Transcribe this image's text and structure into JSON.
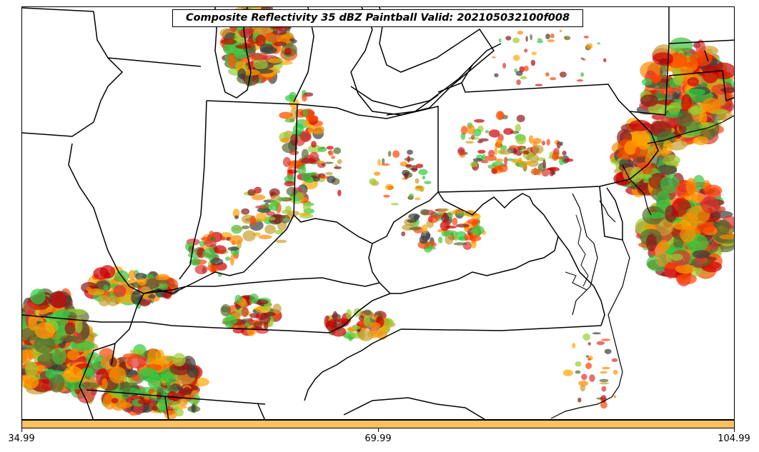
{
  "title": "Composite Reflectivity 35 dBZ Paintball Valid: 202105032100f008",
  "colorbar": {
    "color": "#fdc062",
    "ticks": [
      "34.99",
      "69.99",
      "104.99"
    ]
  },
  "map": {
    "basemap": "state and coastline boundaries, eastern United States (Ohio Valley to Mid-Atlantic)",
    "member_colors": [
      "#cc0000",
      "#ff8c00",
      "#ff4500",
      "#2ecc40",
      "#556b2f",
      "#9acd32",
      "#8b1a1a",
      "#ffa500",
      "#3c3c3c",
      "#c8a032",
      "#e03030",
      "#40c040"
    ],
    "boundary_color": "#000000"
  }
}
